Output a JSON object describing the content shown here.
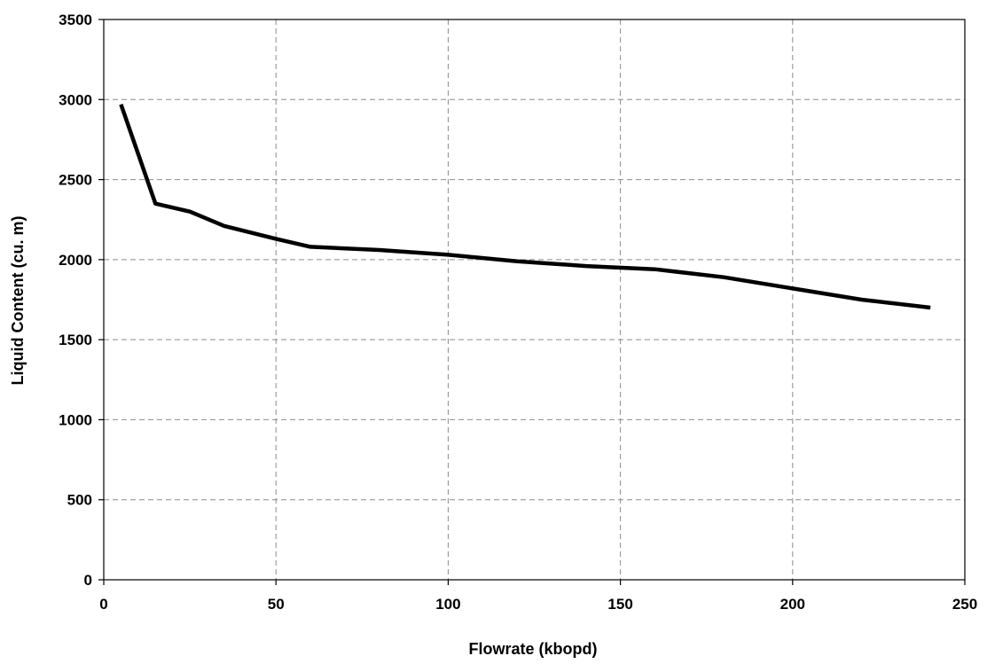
{
  "chart_data": {
    "type": "line",
    "title": "",
    "xlabel": "Flowrate (kbopd)",
    "ylabel": "Liquid Content (cu. m)",
    "xlim": [
      0,
      250
    ],
    "ylim": [
      0,
      3500
    ],
    "xticks": [
      0,
      50,
      100,
      150,
      200,
      250
    ],
    "yticks": [
      0,
      500,
      1000,
      1500,
      2000,
      2500,
      3000,
      3500
    ],
    "grid": true,
    "grid_style": "dashed",
    "legend": "none",
    "series": [
      {
        "color": "#000000",
        "x": [
          5,
          15,
          25,
          35,
          50,
          60,
          80,
          100,
          120,
          140,
          160,
          180,
          200,
          220,
          240
        ],
        "y": [
          2970,
          2350,
          2300,
          2210,
          2130,
          2080,
          2060,
          2030,
          1990,
          1960,
          1940,
          1890,
          1820,
          1750,
          1700
        ]
      }
    ]
  }
}
